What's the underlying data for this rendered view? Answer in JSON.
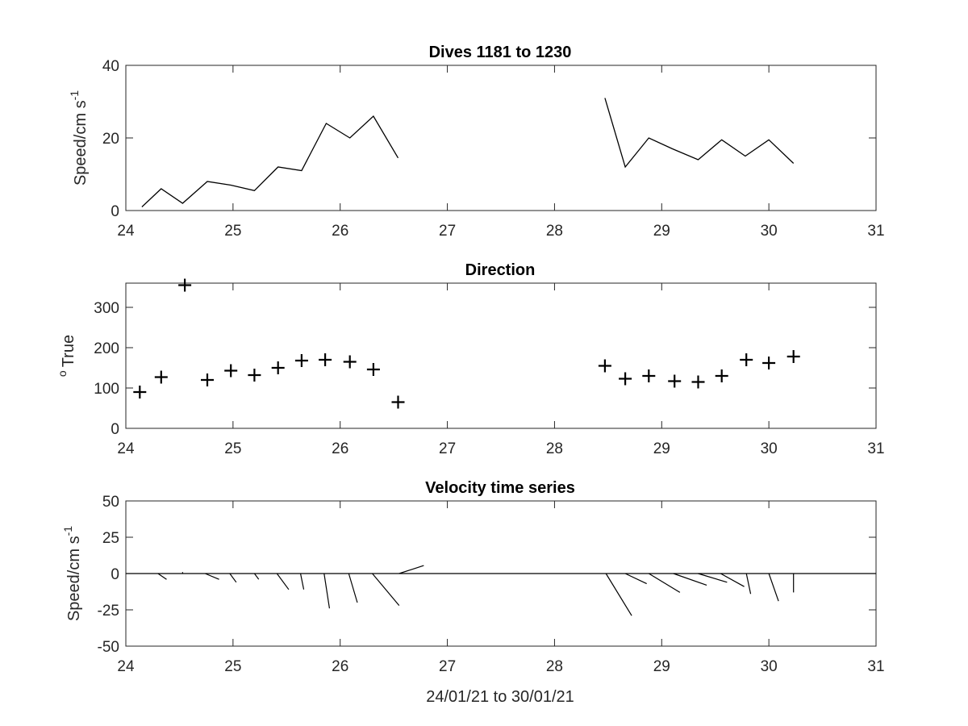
{
  "chart_data": [
    {
      "type": "line",
      "title": "Dives 1181 to 1230",
      "xlabel": "",
      "ylabel": "Speed/cm s",
      "ylabel_superscript": "-1",
      "xlim": [
        24,
        31
      ],
      "ylim": [
        0,
        40
      ],
      "xticks": [
        "24",
        "25",
        "26",
        "27",
        "28",
        "29",
        "30",
        "31"
      ],
      "yticks": [
        "0",
        "20",
        "40"
      ],
      "grid": false,
      "series": [
        {
          "x": [
            24.15,
            24.33,
            24.53,
            24.76,
            24.98,
            25.2,
            25.42,
            25.64,
            25.87,
            26.09,
            26.31,
            26.54
          ],
          "values": [
            1,
            6,
            2,
            8,
            7,
            5.5,
            12,
            11,
            24,
            20,
            26,
            14.5
          ]
        },
        {
          "x": [
            28.47,
            28.66,
            28.88,
            29.1,
            29.34,
            29.56,
            29.78,
            30.0,
            30.23
          ],
          "values": [
            31,
            12,
            20,
            17,
            14,
            19.5,
            15,
            19.5,
            13
          ]
        }
      ]
    },
    {
      "type": "scatter",
      "title": "Direction",
      "xlabel": "",
      "ylabel": "True",
      "ylabel_superscript": "o",
      "xlim": [
        24,
        31
      ],
      "ylim": [
        0,
        360
      ],
      "xticks": [
        "24",
        "25",
        "26",
        "27",
        "28",
        "29",
        "30",
        "31"
      ],
      "yticks": [
        "0",
        "100",
        "200",
        "300"
      ],
      "grid": false,
      "marker": "+",
      "series": [
        {
          "x": [
            24.13,
            24.33,
            24.55,
            24.76,
            24.98,
            25.2,
            25.42,
            25.64,
            25.86,
            26.09,
            26.31,
            26.54,
            28.47,
            28.66,
            28.88,
            29.12,
            29.34,
            29.56,
            29.79,
            30.0,
            30.23
          ],
          "values": [
            90,
            127,
            355,
            120,
            143,
            132,
            150,
            168,
            170,
            165,
            146,
            65,
            155,
            123,
            130,
            117,
            115,
            130,
            170,
            162,
            178
          ]
        }
      ]
    },
    {
      "type": "quiver",
      "title": "Velocity time series",
      "xlabel": "24/01/21 to 30/01/21",
      "ylabel": "Speed/cm s",
      "ylabel_superscript": "-1",
      "xlim": [
        24,
        31
      ],
      "ylim": [
        -50,
        50
      ],
      "xticks": [
        "24",
        "25",
        "26",
        "27",
        "28",
        "29",
        "30",
        "31"
      ],
      "yticks": [
        "50",
        "25",
        "0",
        "-25",
        "-50"
      ],
      "grid": false,
      "zero_line": true,
      "vectors": [
        {
          "x": 24.3,
          "u": 0.08,
          "v": -4
        },
        {
          "x": 24.53,
          "u": 0.0,
          "v": 1
        },
        {
          "x": 24.74,
          "u": 0.13,
          "v": -4
        },
        {
          "x": 24.97,
          "u": 0.06,
          "v": -6
        },
        {
          "x": 25.2,
          "u": 0.04,
          "v": -4
        },
        {
          "x": 25.41,
          "u": 0.11,
          "v": -11
        },
        {
          "x": 25.63,
          "u": 0.03,
          "v": -11
        },
        {
          "x": 25.85,
          "u": 0.05,
          "v": -24
        },
        {
          "x": 26.08,
          "u": 0.08,
          "v": -20
        },
        {
          "x": 26.3,
          "u": 0.25,
          "v": -22
        },
        {
          "x": 26.55,
          "u": 0.23,
          "v": 5.5
        },
        {
          "x": 28.48,
          "u": 0.24,
          "v": -29
        },
        {
          "x": 28.66,
          "u": 0.2,
          "v": -7
        },
        {
          "x": 28.88,
          "u": 0.29,
          "v": -13
        },
        {
          "x": 29.11,
          "u": 0.31,
          "v": -8
        },
        {
          "x": 29.34,
          "u": 0.27,
          "v": -6
        },
        {
          "x": 29.55,
          "u": 0.22,
          "v": -9
        },
        {
          "x": 29.79,
          "u": 0.04,
          "v": -14
        },
        {
          "x": 30.0,
          "u": 0.09,
          "v": -19
        },
        {
          "x": 30.23,
          "u": 0.0,
          "v": -13
        }
      ]
    }
  ]
}
